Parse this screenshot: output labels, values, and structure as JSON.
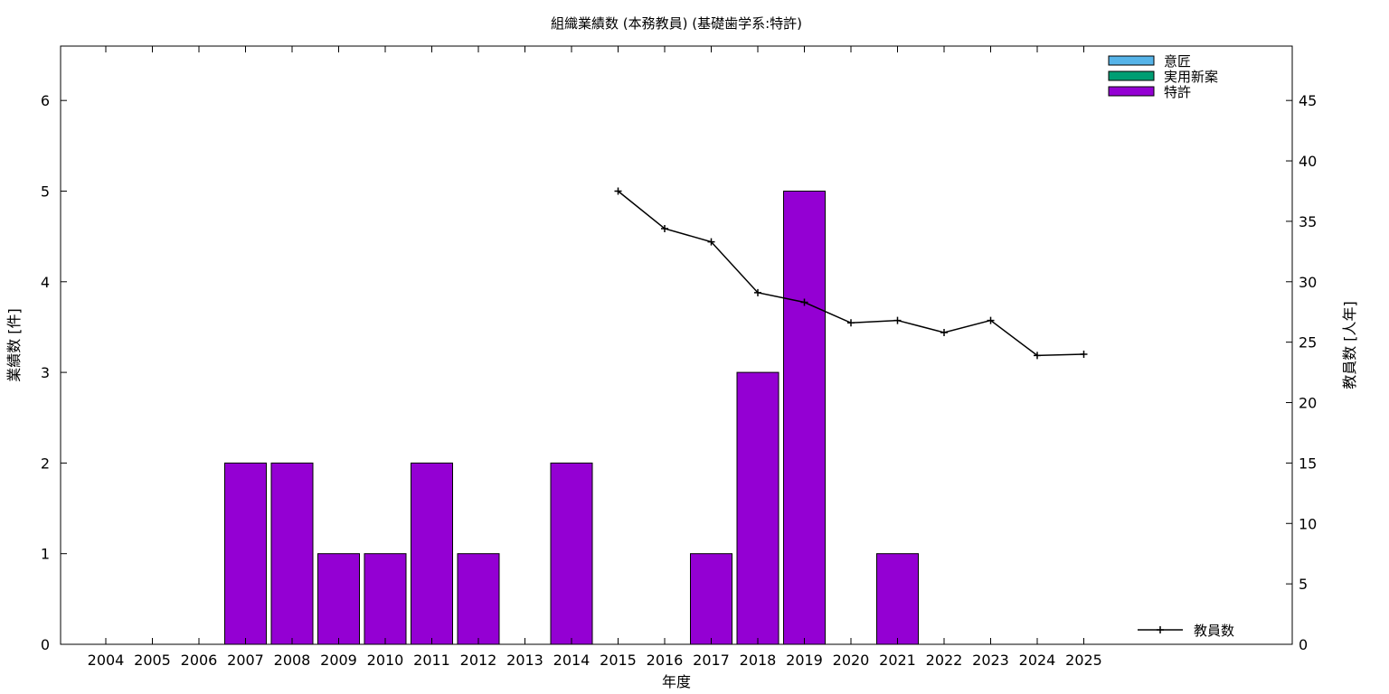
{
  "chart_data": {
    "type": "bar",
    "title": "組織業績数 (本務教員) (基礎歯学系:特許)",
    "xlabel": "年度",
    "ylabel": "業績数 [件]",
    "y2label": "教員数 [人年]",
    "categories": [
      "2004",
      "2005",
      "2006",
      "2007",
      "2008",
      "2009",
      "2010",
      "2011",
      "2012",
      "2013",
      "2014",
      "2015",
      "2016",
      "2017",
      "2018",
      "2019",
      "2020",
      "2021",
      "2022",
      "2023",
      "2024",
      "2025"
    ],
    "ylim": [
      0,
      6.6
    ],
    "yticks": [
      0,
      1,
      2,
      3,
      4,
      5,
      6
    ],
    "y2lim": [
      0,
      49.5
    ],
    "y2ticks": [
      0,
      5,
      10,
      15,
      20,
      25,
      30,
      35,
      40,
      45
    ],
    "grid": false,
    "legend_position": "top-right",
    "series": [
      {
        "name": "意匠",
        "kind": "bar",
        "color": "#56b4e9",
        "values": [
          0,
          0,
          0,
          0,
          0,
          0,
          0,
          0,
          0,
          0,
          0,
          0,
          0,
          0,
          0,
          0,
          0,
          0,
          0,
          0,
          0,
          0
        ]
      },
      {
        "name": "実用新案",
        "kind": "bar",
        "color": "#009e73",
        "values": [
          0,
          0,
          0,
          0,
          0,
          0,
          0,
          0,
          0,
          0,
          0,
          0,
          0,
          0,
          0,
          0,
          0,
          0,
          0,
          0,
          0,
          0
        ]
      },
      {
        "name": "特許",
        "kind": "bar",
        "color": "#9400d3",
        "values": [
          0,
          0,
          0,
          2,
          2,
          1,
          1,
          2,
          1,
          0,
          2,
          0,
          0,
          1,
          3,
          5,
          0,
          1,
          0,
          0,
          0,
          0
        ]
      },
      {
        "name": "教員数",
        "kind": "line",
        "axis": "right",
        "color": "#000000",
        "values": [
          null,
          null,
          null,
          null,
          null,
          null,
          null,
          null,
          null,
          null,
          null,
          37.5,
          34.4,
          33.3,
          29.1,
          28.3,
          26.6,
          26.8,
          25.8,
          26.8,
          23.9,
          24.0
        ]
      }
    ]
  }
}
